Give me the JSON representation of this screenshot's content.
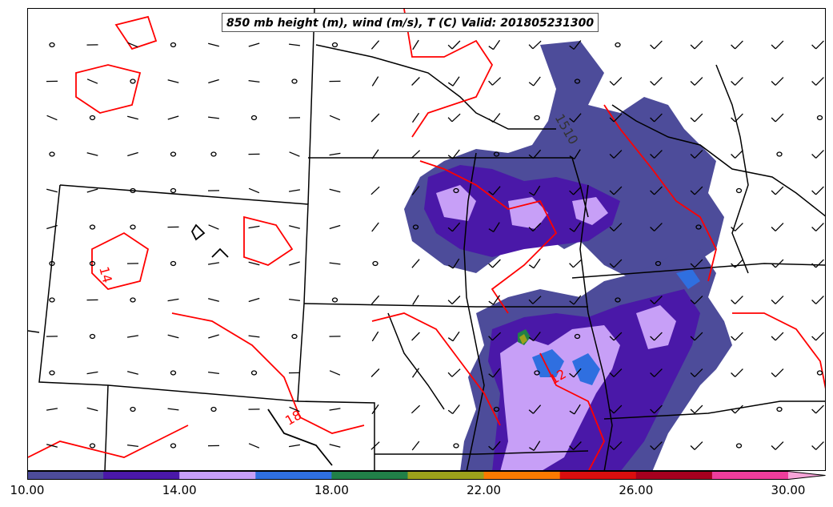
{
  "title": "850 mb height (m), wind (m/s), T (C) Valid: 201805231300",
  "contour_labels": [
    {
      "text": "1510",
      "color": "#333333"
    },
    {
      "text": "14",
      "color": "#ff0000"
    },
    {
      "text": "18",
      "color": "#ff0000"
    },
    {
      "text": "12",
      "color": "#ff0000"
    }
  ],
  "colorbar": {
    "colors": [
      "#4d4c9a",
      "#4a18a8",
      "#c79ff7",
      "#2f6fe0",
      "#218048",
      "#9ca11b",
      "#fa7a00",
      "#d90e0e",
      "#a6001f",
      "#ee3d9c",
      "#f7a4d8"
    ],
    "ticks": [
      "10.00",
      "14.00",
      "18.00",
      "22.00",
      "26.00",
      "30.00"
    ],
    "min": 10,
    "max": 31
  }
}
